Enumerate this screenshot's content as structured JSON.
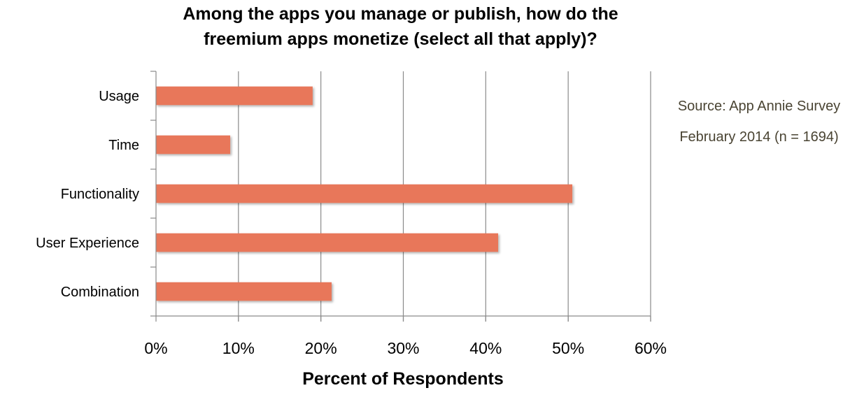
{
  "chart_data": {
    "type": "bar",
    "orientation": "horizontal",
    "title_line1": "Among the apps you manage or publish, how do the",
    "title_line2": "freemium apps monetize (select all that apply)?",
    "categories": [
      "Usage",
      "Time",
      "Functionality",
      "User Experience",
      "Combination"
    ],
    "values": [
      19,
      9,
      50.5,
      41.5,
      21.3
    ],
    "value_unit": "percent",
    "xlim": [
      0,
      60
    ],
    "x_ticks": [
      "0%",
      "10%",
      "20%",
      "30%",
      "40%",
      "50%",
      "60%"
    ],
    "xlabel": "Percent of Respondents",
    "ylabel": "",
    "grid": "vertical",
    "legend": "none",
    "bar_color": "#E8775A",
    "source_line1": "Source: App Annie Survey",
    "source_line2": "February 2014 (n = 1694)"
  }
}
